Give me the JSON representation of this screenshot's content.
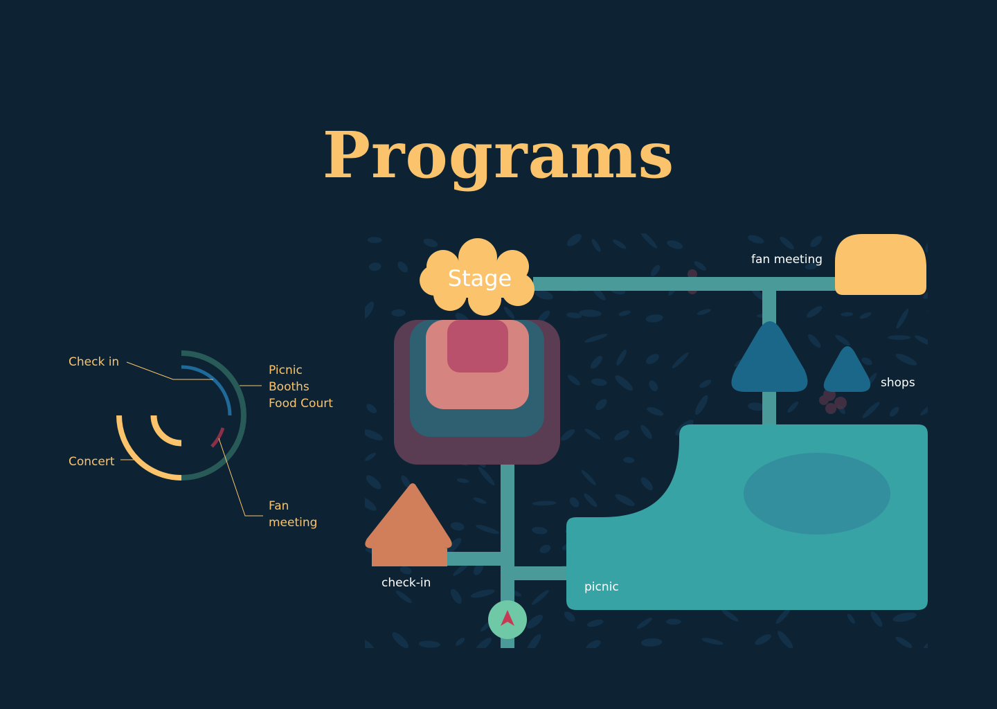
{
  "page": {
    "title": "Programs"
  },
  "colors": {
    "background": "#0d2333",
    "accent_yellow": "#fbc46c",
    "path_teal": "#4b9a9a",
    "picnic_teal": "#38a3a5",
    "shops_blue": "#1b678a",
    "checkin_orange": "#d07f5a",
    "stage_purple": "#5a3c53",
    "stage_blue": "#2e6072",
    "stage_salmon": "#d68480",
    "stage_pink": "#b9506c",
    "pointer_mint": "#6fc9a7",
    "pointer_red": "#c73a55",
    "ring_dark_teal": "#285a58",
    "ring_blue": "#1f6a98",
    "ring_red": "#8c2f48"
  },
  "legend": {
    "check_in": "Check in",
    "concert": "Concert",
    "picnic_lines": [
      "Picnic",
      "Booths",
      "Food Court"
    ],
    "fan_meeting_lines": [
      "Fan",
      "meeting"
    ]
  },
  "map": {
    "stage": "Stage",
    "fan_meeting": "fan meeting",
    "shops": "shops",
    "check_in": "check-in",
    "picnic": "picnic"
  },
  "icons": {
    "pointer": "navigation-arrow-icon",
    "decor": "leaf-pattern-icon"
  }
}
